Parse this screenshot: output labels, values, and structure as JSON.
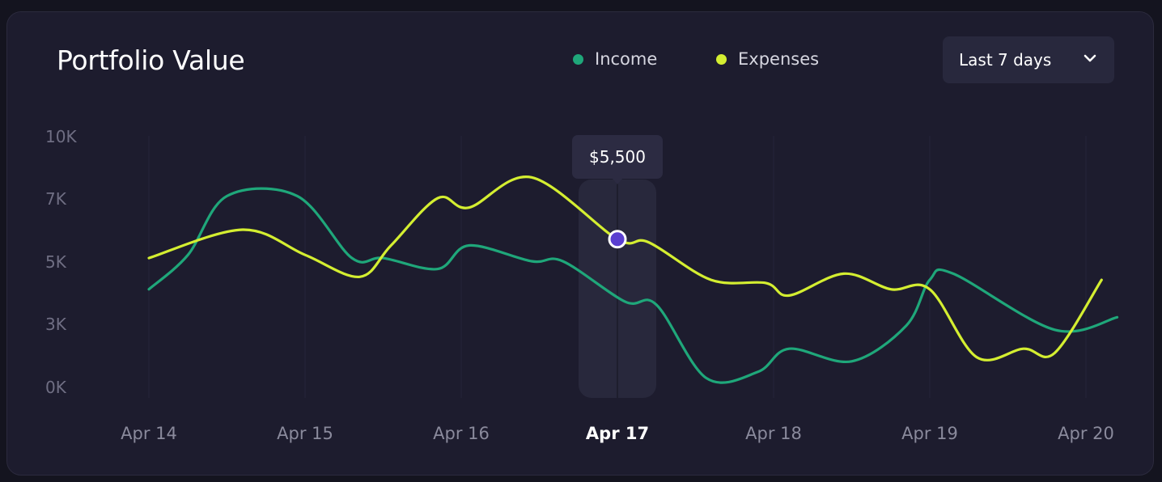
{
  "header": {
    "title": "Portfolio Value",
    "range_select": {
      "label": "Last 7 days"
    }
  },
  "colors": {
    "income": "#1fa77a",
    "expenses": "#d4ee31",
    "marker": "#5a3fd0",
    "tooltip_bg": "#2c2b42"
  },
  "icons": {
    "range_chevron": "chevron-down-icon"
  },
  "chart_data": {
    "type": "line",
    "title": "Portfolio Value",
    "x": [
      "Apr 14",
      "Apr 15",
      "Apr 16",
      "Apr 17",
      "Apr 18",
      "Apr 19",
      "Apr 20"
    ],
    "y_tick_labels": [
      "0K",
      "3K",
      "5K",
      "7K",
      "10K"
    ],
    "active_x": "Apr 17",
    "legend": "top",
    "grid": true,
    "series": [
      {
        "name": "Income",
        "points": [
          [
            0,
            4.1
          ],
          [
            0.25,
            5.2
          ],
          [
            0.5,
            7.1
          ],
          [
            0.95,
            7.1
          ],
          [
            1.3,
            5.1
          ],
          [
            1.5,
            5.1
          ],
          [
            1.85,
            4.75
          ],
          [
            2.05,
            5.5
          ],
          [
            2.45,
            5.0
          ],
          [
            2.65,
            5.0
          ],
          [
            3.05,
            3.7
          ],
          [
            3.25,
            3.6
          ],
          [
            3.57,
            0.4
          ],
          [
            3.9,
            0.7
          ],
          [
            4.1,
            1.8
          ],
          [
            4.5,
            1.2
          ],
          [
            4.85,
            2.9
          ],
          [
            5.0,
            4.4
          ],
          [
            5.15,
            4.6
          ],
          [
            5.8,
            2.7
          ],
          [
            6.2,
            3.2
          ]
        ]
      },
      {
        "name": "Expenses",
        "points": [
          [
            0,
            5.1
          ],
          [
            0.6,
            6.0
          ],
          [
            1.0,
            5.2
          ],
          [
            1.35,
            4.5
          ],
          [
            1.55,
            5.5
          ],
          [
            1.85,
            7.0
          ],
          [
            2.05,
            6.7
          ],
          [
            2.45,
            8.0
          ],
          [
            3.0,
            5.7
          ],
          [
            3.2,
            5.6
          ],
          [
            3.6,
            4.4
          ],
          [
            3.95,
            4.3
          ],
          [
            4.1,
            3.9
          ],
          [
            4.45,
            4.6
          ],
          [
            4.75,
            4.1
          ],
          [
            5.0,
            4.1
          ],
          [
            5.3,
            1.4
          ],
          [
            5.6,
            1.8
          ],
          [
            5.8,
            1.6
          ],
          [
            6.1,
            4.4
          ]
        ]
      }
    ],
    "annotation": {
      "label": "$5,500",
      "x": 3.0,
      "y": 5.7,
      "series": "Expenses"
    }
  }
}
